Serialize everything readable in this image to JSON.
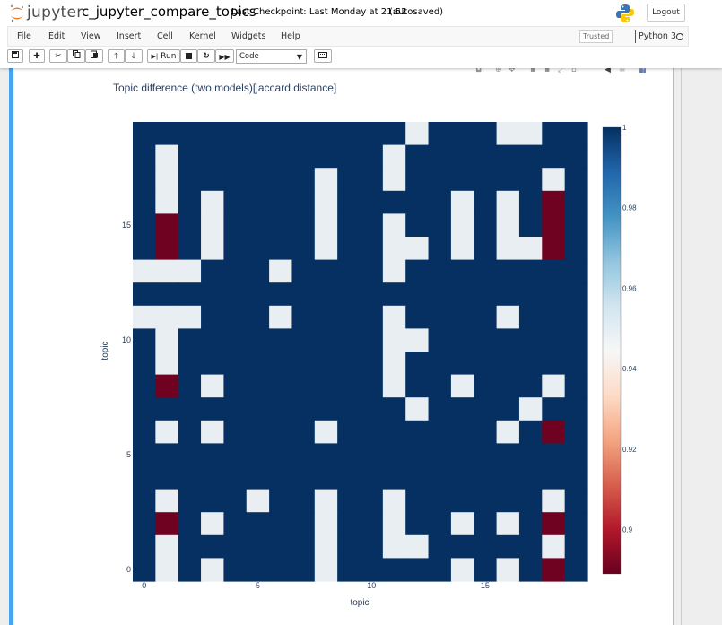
{
  "header": {
    "logo_text": "jupyter",
    "notebook_title": "c_jupyter_compare_topics",
    "checkpoint": "Last Checkpoint: Last Monday at 21:52",
    "autosave_status": "(autosaved)",
    "logout_label": "Logout"
  },
  "menubar": {
    "items": [
      "File",
      "Edit",
      "View",
      "Insert",
      "Cell",
      "Kernel",
      "Widgets",
      "Help"
    ],
    "trusted_label": "Trusted",
    "kernel_name": "Python 3"
  },
  "toolbar": {
    "run_label": "Run",
    "cell_type": "Code"
  },
  "colors": {
    "accent_bar": "#42a5f5",
    "heatmap_high": "#053061",
    "heatmap_mid": "#e8eef2",
    "heatmap_low": "#67001f"
  },
  "chart_data": {
    "type": "heatmap",
    "title": "Topic difference (two models)[jaccard distance]",
    "xlabel": "topic",
    "ylabel": "topic",
    "x_ticks": [
      "0",
      "5",
      "10",
      "15"
    ],
    "y_ticks": [
      "0",
      "5",
      "10",
      "15"
    ],
    "colorbar_ticks": [
      "1",
      "0.98",
      "0.96",
      "0.94",
      "0.92",
      "0.9"
    ],
    "colorbar_range": [
      0.889,
      1.0
    ],
    "colorscale": "RdBu",
    "rows": 20,
    "cols": 20,
    "z": [
      [
        1,
        1,
        1,
        1,
        1,
        1,
        1,
        1,
        1,
        1,
        1,
        1,
        0.95,
        1,
        1,
        1,
        0.95,
        0.95,
        1,
        1
      ],
      [
        1,
        0.95,
        1,
        1,
        1,
        1,
        1,
        1,
        1,
        1,
        1,
        0.95,
        1,
        1,
        1,
        1,
        1,
        1,
        1,
        1
      ],
      [
        1,
        0.95,
        1,
        1,
        1,
        1,
        1,
        1,
        0.95,
        1,
        1,
        0.95,
        1,
        1,
        1,
        1,
        1,
        1,
        0.95,
        1
      ],
      [
        1,
        0.95,
        1,
        0.95,
        1,
        1,
        1,
        1,
        0.95,
        1,
        1,
        1,
        1,
        1,
        0.95,
        1,
        0.95,
        1,
        0.89,
        1
      ],
      [
        1,
        0.89,
        1,
        0.95,
        1,
        1,
        1,
        1,
        0.95,
        1,
        1,
        0.95,
        1,
        1,
        0.95,
        1,
        0.95,
        1,
        0.89,
        1
      ],
      [
        1,
        0.89,
        1,
        0.95,
        1,
        1,
        1,
        1,
        0.95,
        1,
        1,
        0.95,
        0.95,
        1,
        0.95,
        1,
        0.95,
        0.95,
        0.89,
        1
      ],
      [
        0.95,
        0.95,
        0.95,
        1,
        1,
        1,
        0.95,
        1,
        1,
        1,
        1,
        0.95,
        1,
        1,
        1,
        1,
        1,
        1,
        1,
        1
      ],
      [
        1,
        1,
        1,
        1,
        1,
        1,
        1,
        1,
        1,
        1,
        1,
        1,
        1,
        1,
        1,
        1,
        1,
        1,
        1,
        1
      ],
      [
        0.95,
        0.95,
        0.95,
        1,
        1,
        1,
        0.95,
        1,
        1,
        1,
        1,
        0.95,
        1,
        1,
        1,
        1,
        0.95,
        1,
        1,
        1
      ],
      [
        1,
        0.95,
        1,
        1,
        1,
        1,
        1,
        1,
        1,
        1,
        1,
        0.95,
        0.95,
        1,
        1,
        1,
        1,
        1,
        1,
        1
      ],
      [
        1,
        0.95,
        1,
        1,
        1,
        1,
        1,
        1,
        1,
        1,
        1,
        0.95,
        1,
        1,
        1,
        1,
        1,
        1,
        1,
        1
      ],
      [
        1,
        0.89,
        1,
        0.95,
        1,
        1,
        1,
        1,
        1,
        1,
        1,
        0.95,
        1,
        1,
        0.95,
        1,
        1,
        1,
        0.95,
        1
      ],
      [
        1,
        1,
        1,
        1,
        1,
        1,
        1,
        1,
        1,
        1,
        1,
        1,
        0.95,
        1,
        1,
        1,
        1,
        0.95,
        1,
        1
      ],
      [
        1,
        0.95,
        1,
        0.95,
        1,
        1,
        1,
        1,
        0.95,
        1,
        1,
        1,
        1,
        1,
        1,
        1,
        0.95,
        1,
        0.89,
        1
      ],
      [
        1,
        1,
        1,
        1,
        1,
        1,
        1,
        1,
        1,
        1,
        1,
        1,
        1,
        1,
        1,
        1,
        1,
        1,
        1,
        1
      ],
      [
        1,
        1,
        1,
        1,
        1,
        1,
        1,
        1,
        1,
        1,
        1,
        1,
        1,
        1,
        1,
        1,
        1,
        1,
        1,
        1
      ],
      [
        1,
        0.95,
        1,
        1,
        1,
        0.95,
        1,
        1,
        0.95,
        1,
        1,
        0.95,
        1,
        1,
        1,
        1,
        1,
        1,
        0.95,
        1
      ],
      [
        1,
        0.89,
        1,
        0.95,
        1,
        1,
        1,
        1,
        0.95,
        1,
        1,
        0.95,
        1,
        1,
        0.95,
        1,
        0.95,
        1,
        0.89,
        1
      ],
      [
        1,
        0.95,
        1,
        1,
        1,
        1,
        1,
        1,
        0.95,
        1,
        1,
        0.95,
        0.95,
        1,
        1,
        1,
        1,
        1,
        0.95,
        1
      ],
      [
        1,
        0.95,
        1,
        0.95,
        1,
        1,
        1,
        1,
        0.95,
        1,
        1,
        1,
        1,
        1,
        0.95,
        1,
        0.95,
        1,
        0.89,
        1
      ]
    ]
  }
}
